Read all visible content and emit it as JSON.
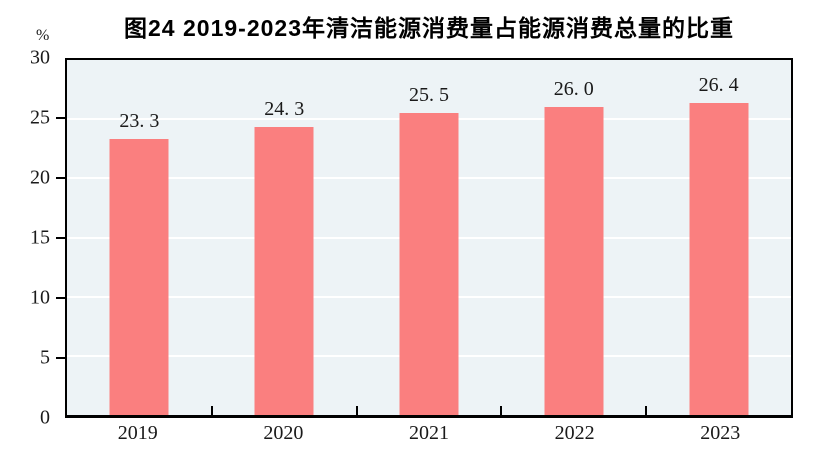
{
  "figure": {
    "title": "图24  2019-2023年清洁能源消费量占能源消费总量的比重",
    "unit_label": "%"
  },
  "chart_data": {
    "type": "bar",
    "title": "图24  2019-2023年清洁能源消费量占能源消费总量的比重",
    "categories": [
      "2019",
      "2020",
      "2021",
      "2022",
      "2023"
    ],
    "values": [
      23.3,
      24.3,
      25.5,
      26.0,
      26.4
    ],
    "value_labels": [
      "23. 3",
      "24. 3",
      "25. 5",
      "26. 0",
      "26. 4"
    ],
    "xlabel": "",
    "ylabel": "%",
    "ylim": [
      0,
      30
    ],
    "yticks": [
      0,
      5,
      10,
      15,
      20,
      25,
      30
    ],
    "grid": "horizontal-white",
    "legend": "none",
    "colors": {
      "bar": "#FA7F7F",
      "plot_background": "#EDF3F6",
      "gridline": "#FFFFFF",
      "axis": "#000000",
      "text": "#1A1A1A",
      "page_background": "#FFFFFF"
    }
  }
}
